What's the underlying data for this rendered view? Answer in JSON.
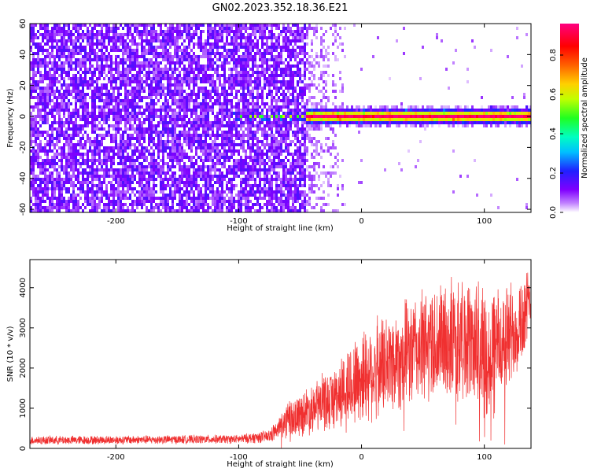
{
  "title": "GN02.2023.352.18.36.E21",
  "chart_data": [
    {
      "type": "heatmap",
      "xlabel": "Height of straight line (km)",
      "ylabel": "Frequency (Hz)",
      "xlim": [
        -270,
        138
      ],
      "ylim": [
        -62,
        60
      ],
      "xticks": [
        "-200",
        "-100",
        "0",
        "100"
      ],
      "xtick_values": [
        -200,
        -100,
        0,
        100
      ],
      "yticks": [
        "60",
        "40",
        "20",
        "0",
        "-20",
        "-40",
        "-60"
      ],
      "ytick_values": [
        60,
        40,
        20,
        0,
        -20,
        -40,
        -60
      ],
      "colorbar": {
        "label": "Normalized spectral amplitude",
        "ticks": [
          "0.0",
          "0.2",
          "0.4",
          "0.6",
          "0.8"
        ],
        "tick_values": [
          0.0,
          0.2,
          0.4,
          0.6,
          0.8
        ],
        "range": [
          0,
          0.96
        ],
        "colormap": "hsv-like (violet → blue → cyan → green → yellow → red → magenta)"
      },
      "description_points": {
        "noise_region_x": [
          -270,
          -45
        ],
        "fade_region_x": [
          -45,
          -12
        ],
        "signal_line_frequency": 0,
        "signal_start_x": -45,
        "signal_end_x": 138
      }
    },
    {
      "type": "line",
      "xlabel": "Height of straight line (km)",
      "ylabel": "SNR (10 * v/v)",
      "xlim": [
        -270,
        138
      ],
      "ylim": [
        0,
        4700
      ],
      "xticks": [
        "-200",
        "-100",
        "0",
        "100"
      ],
      "xtick_values": [
        -200,
        -100,
        0,
        100
      ],
      "yticks": [
        "0",
        "1000",
        "2000",
        "3000",
        "4000"
      ],
      "ytick_values": [
        0,
        1000,
        2000,
        3000,
        4000
      ],
      "color": "#f03030",
      "envelope": {
        "x": [
          -270,
          -200,
          -100,
          -75,
          -60,
          -40,
          -20,
          0,
          20,
          40,
          60,
          80,
          100,
          110,
          120,
          130,
          138
        ],
        "mean": [
          200,
          210,
          230,
          300,
          700,
          1000,
          1300,
          1800,
          2100,
          2400,
          2600,
          2700,
          2600,
          2500,
          2800,
          3200,
          3600
        ],
        "spread": [
          120,
          120,
          120,
          180,
          500,
          700,
          900,
          1300,
          1400,
          1500,
          1600,
          1700,
          1700,
          1600,
          1500,
          1300,
          1000
        ]
      }
    }
  ]
}
